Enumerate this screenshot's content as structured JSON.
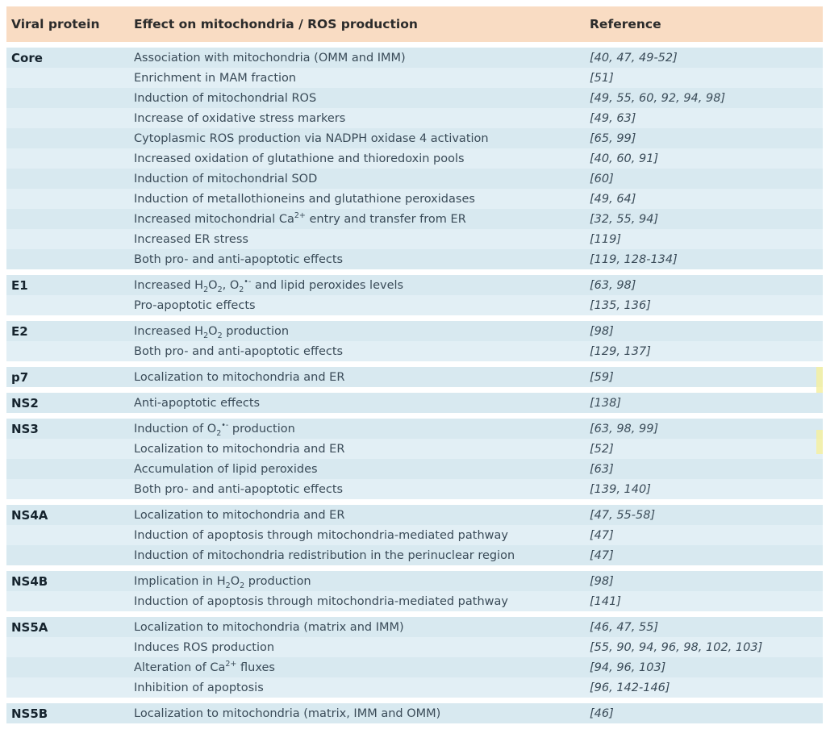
{
  "colors": {
    "header_bg": "#f9dcc3",
    "header_text": "#2b2b2b",
    "row_bg": "#d8e9f0",
    "row_bg_alt": "#e2eff5",
    "text": "#3a4b58",
    "protein_text": "#16242e",
    "highlight": "#f5f0a2"
  },
  "table": {
    "columns": [
      "Viral protein",
      "Effect on mitochondria / ROS production",
      "Reference"
    ],
    "sections": [
      {
        "protein": "Core",
        "rows": [
          {
            "effect": "Association with mitochondria (OMM and IMM)",
            "ref": "[40, 47, 49-52]"
          },
          {
            "effect": "Enrichment in MAM fraction",
            "ref": "[51]"
          },
          {
            "effect": "Induction of mitochondrial ROS",
            "ref": "[49, 55, 60, 92, 94, 98]"
          },
          {
            "effect": "Increase of oxidative stress markers",
            "ref": "[49, 63]"
          },
          {
            "effect": "Cytoplasmic ROS production via NADPH oxidase 4 activation",
            "ref": "[65, 99]"
          },
          {
            "effect": "Increased oxidation of glutathione and thioredoxin pools",
            "ref": "[40, 60, 91]"
          },
          {
            "effect": "Induction of mitochondrial SOD",
            "ref": "[60]"
          },
          {
            "effect": "Induction of metallothioneins and glutathione peroxidases",
            "ref": "[49, 64]"
          },
          {
            "effect": "Increased mitochondrial Ca^{2+} entry and transfer from ER",
            "ref": "[32, 55, 94]"
          },
          {
            "effect": "Increased ER stress",
            "ref": "[119]"
          },
          {
            "effect": "Both pro- and anti-apoptotic effects",
            "ref": "[119, 128-134]"
          }
        ]
      },
      {
        "protein": "E1",
        "rows": [
          {
            "effect": "Increased H_{2}O_{2}, O_{2}^{•-} and lipid peroxides levels",
            "ref": "[63, 98]"
          },
          {
            "effect": "Pro-apoptotic effects",
            "ref": "[135, 136]"
          }
        ]
      },
      {
        "protein": "E2",
        "rows": [
          {
            "effect": "Increased H_{2}O_{2} production",
            "ref": "[98]"
          },
          {
            "effect": "Both pro- and anti-apoptotic effects",
            "ref": "[129, 137]"
          }
        ]
      },
      {
        "protein": "p7",
        "rows": [
          {
            "effect": "Localization to mitochondria and ER",
            "ref": "[59]"
          }
        ]
      },
      {
        "protein": "NS2",
        "rows": [
          {
            "effect": "Anti-apoptotic effects",
            "ref": "[138]"
          }
        ]
      },
      {
        "protein": "NS3",
        "rows": [
          {
            "effect": "Induction of O_{2}^{•-} production",
            "ref": "[63, 98, 99]"
          },
          {
            "effect": "Localization to mitochondria and ER",
            "ref": "[52]"
          },
          {
            "effect": "Accumulation of lipid peroxides",
            "ref": "[63]"
          },
          {
            "effect": "Both pro- and anti-apoptotic effects",
            "ref": "[139, 140]"
          }
        ]
      },
      {
        "protein": "NS4A",
        "rows": [
          {
            "effect": "Localization to mitochondria and ER",
            "ref": "[47, 55-58]"
          },
          {
            "effect": "Induction of apoptosis through mitochondria-mediated pathway",
            "ref": "[47]"
          },
          {
            "effect": "Induction of mitochondria redistribution in the perinuclear region",
            "ref": "[47]"
          }
        ]
      },
      {
        "protein": "NS4B",
        "rows": [
          {
            "effect": "Implication in H_{2}O_{2} production",
            "ref": "[98]"
          },
          {
            "effect": "Induction of apoptosis through mitochondria-mediated pathway",
            "ref": "[141]"
          }
        ]
      },
      {
        "protein": "NS5A",
        "rows": [
          {
            "effect": "Localization to mitochondria (matrix and IMM)",
            "ref": "[46, 47, 55]"
          },
          {
            "effect": "Induces ROS production",
            "ref": "[55, 90, 94, 96, 98, 102, 103]"
          },
          {
            "effect": "Alteration of Ca^{2+} fluxes",
            "ref": "[94, 96, 103]"
          },
          {
            "effect": "Inhibition of apoptosis",
            "ref": "[96, 142-146]"
          }
        ]
      },
      {
        "protein": "NS5B",
        "rows": [
          {
            "effect": "Localization to mitochondria (matrix, IMM and OMM)",
            "ref": "[46]"
          }
        ]
      }
    ]
  }
}
